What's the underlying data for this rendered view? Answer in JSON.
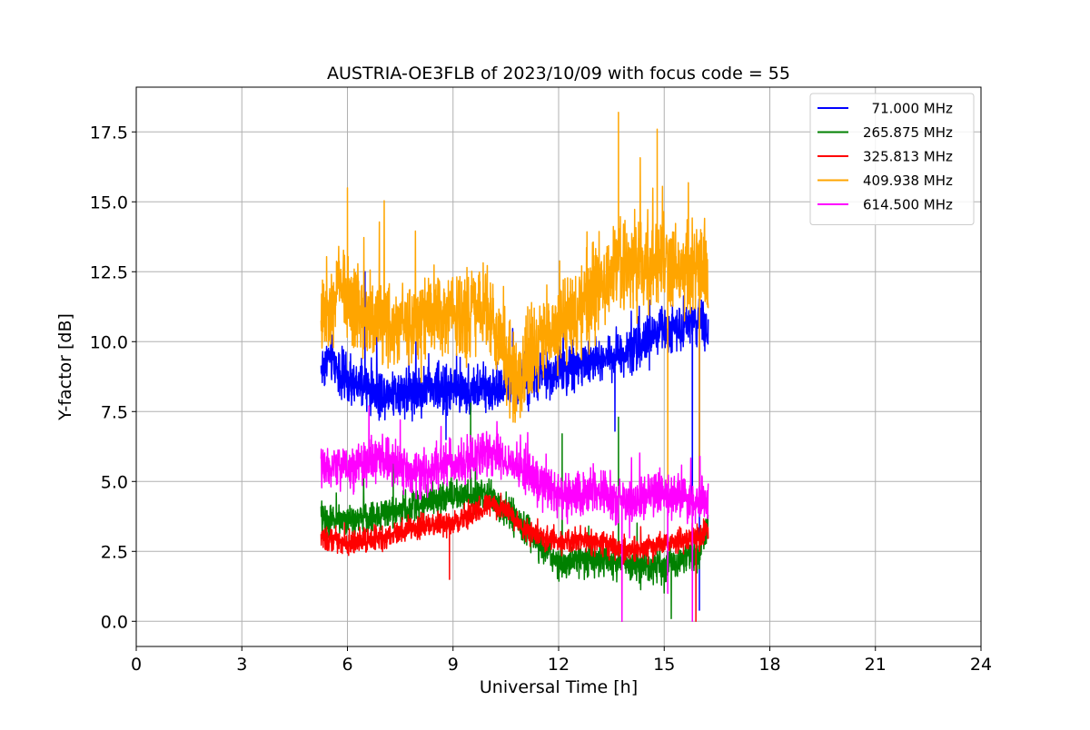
{
  "chart_data": {
    "type": "line",
    "title": "AUSTRIA-OE3FLB of 2023/10/09 with focus code = 55",
    "xlabel": "Universal Time [h]",
    "ylabel": "Y-factor [dB]",
    "xlim": [
      0,
      24
    ],
    "ylim": [
      -0.9,
      19.1
    ],
    "xticks": [
      0,
      3,
      6,
      9,
      12,
      15,
      18,
      21,
      24
    ],
    "xtick_labels": [
      "0",
      "3",
      "6",
      "9",
      "12",
      "15",
      "18",
      "21",
      "24"
    ],
    "yticks": [
      0,
      2.5,
      5,
      7.5,
      10,
      12.5,
      15,
      17.5
    ],
    "ytick_labels": [
      "0.0",
      "2.5",
      "5.0",
      "7.5",
      "10.0",
      "12.5",
      "15.0",
      "17.5"
    ],
    "grid": true,
    "legend_position": "top-right",
    "series": [
      {
        "name": "  71.000 MHz",
        "color": "#0000ff",
        "noise": 0.6,
        "points": [
          [
            5.25,
            9.0
          ],
          [
            5.5,
            9.5
          ],
          [
            6.0,
            8.5
          ],
          [
            7.0,
            8.2
          ],
          [
            8.0,
            8.3
          ],
          [
            9.0,
            8.3
          ],
          [
            10.0,
            8.3
          ],
          [
            11.0,
            8.6
          ],
          [
            12.0,
            9.0
          ],
          [
            13.0,
            9.3
          ],
          [
            14.0,
            9.7
          ],
          [
            15.0,
            10.4
          ],
          [
            16.0,
            10.8
          ],
          [
            16.25,
            10.2
          ]
        ],
        "spikes": [
          [
            6.5,
            12.5
          ],
          [
            8.8,
            6.5
          ],
          [
            13.6,
            6.8
          ],
          [
            15.8,
            1.0
          ],
          [
            16.0,
            0.4
          ]
        ]
      },
      {
        "name": "265.875 MHz",
        "color": "#008000",
        "noise": 0.4,
        "points": [
          [
            5.25,
            3.7
          ],
          [
            6.0,
            3.6
          ],
          [
            7.0,
            3.8
          ],
          [
            8.0,
            4.2
          ],
          [
            9.0,
            4.5
          ],
          [
            10.0,
            4.5
          ],
          [
            11.0,
            3.4
          ],
          [
            12.0,
            2.0
          ],
          [
            13.0,
            2.2
          ],
          [
            14.0,
            2.1
          ],
          [
            15.0,
            1.9
          ],
          [
            16.0,
            2.5
          ],
          [
            16.25,
            3.5
          ]
        ],
        "spikes": [
          [
            7.3,
            5.7
          ],
          [
            9.5,
            7.8
          ],
          [
            12.1,
            6.7
          ],
          [
            13.7,
            7.3
          ],
          [
            15.2,
            0.1
          ]
        ]
      },
      {
        "name": "325.813 MHz",
        "color": "#ff0000",
        "noise": 0.3,
        "points": [
          [
            5.25,
            3.0
          ],
          [
            6.0,
            2.8
          ],
          [
            7.0,
            3.0
          ],
          [
            8.0,
            3.4
          ],
          [
            9.0,
            3.5
          ],
          [
            10.0,
            4.2
          ],
          [
            10.5,
            4.0
          ],
          [
            11.0,
            3.3
          ],
          [
            12.0,
            2.8
          ],
          [
            13.0,
            2.9
          ],
          [
            14.0,
            2.5
          ],
          [
            15.0,
            2.8
          ],
          [
            16.0,
            3.0
          ],
          [
            16.25,
            3.3
          ]
        ],
        "spikes": [
          [
            8.9,
            1.5
          ],
          [
            13.8,
            0.0
          ],
          [
            15.9,
            0.0
          ]
        ]
      },
      {
        "name": "409.938 MHz",
        "color": "#ffa500",
        "noise": 1.1,
        "points": [
          [
            5.25,
            11.0
          ],
          [
            5.8,
            12.0
          ],
          [
            6.5,
            11.0
          ],
          [
            7.5,
            10.5
          ],
          [
            8.5,
            10.8
          ],
          [
            9.5,
            10.7
          ],
          [
            10.0,
            11.5
          ],
          [
            10.3,
            10.0
          ],
          [
            10.8,
            8.5
          ],
          [
            11.5,
            10.0
          ],
          [
            12.5,
            11.0
          ],
          [
            13.5,
            12.5
          ],
          [
            14.5,
            12.8
          ],
          [
            15.5,
            12.7
          ],
          [
            16.25,
            12.5
          ]
        ],
        "spikes": [
          [
            6.0,
            15.5
          ],
          [
            13.7,
            18.2
          ],
          [
            14.8,
            17.6
          ],
          [
            15.1,
            4.8
          ],
          [
            16.0,
            4.5
          ]
        ]
      },
      {
        "name": "614.500 MHz",
        "color": "#ff00ff",
        "noise": 0.55,
        "points": [
          [
            5.25,
            5.5
          ],
          [
            6.0,
            5.5
          ],
          [
            7.0,
            5.8
          ],
          [
            8.0,
            5.2
          ],
          [
            9.0,
            5.7
          ],
          [
            10.0,
            6.0
          ],
          [
            11.0,
            5.4
          ],
          [
            12.0,
            4.5
          ],
          [
            13.0,
            4.6
          ],
          [
            14.0,
            4.3
          ],
          [
            15.0,
            4.6
          ],
          [
            16.0,
            4.3
          ],
          [
            16.25,
            4.5
          ]
        ],
        "spikes": [
          [
            7.5,
            7.2
          ],
          [
            13.8,
            0.0
          ],
          [
            15.1,
            1.0
          ],
          [
            15.8,
            0.0
          ]
        ]
      }
    ]
  }
}
